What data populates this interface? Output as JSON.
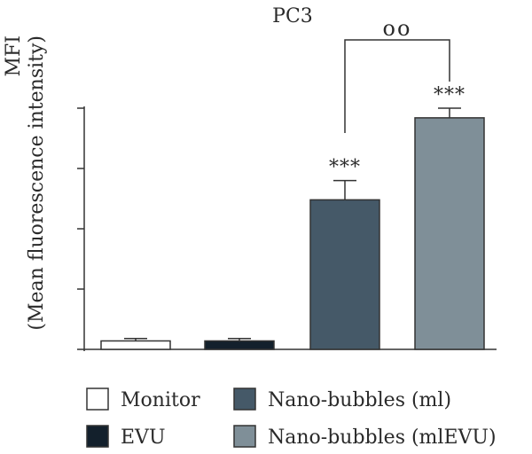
{
  "chart_data": {
    "type": "bar",
    "title": "PC3",
    "ylabel_line1": "MFI",
    "ylabel_line2": "(Mean fluorescence intensity)",
    "xlabel": "",
    "categories": [
      "Monitor",
      "EVU",
      "Nano-bubbles (ml)",
      "Nano-bubbles (mlEVU)"
    ],
    "values": [
      3.5,
      3.5,
      62,
      96
    ],
    "errors": [
      1.0,
      1.0,
      8,
      4
    ],
    "ylim": [
      0,
      100
    ],
    "y_tick_values": [
      0,
      25,
      50,
      75,
      100
    ],
    "y_tick_labels_shown": false,
    "significance_above_bar": [
      "",
      "",
      "***",
      "***"
    ],
    "comparison": {
      "from_index": 2,
      "to_index": 3,
      "label": "oo"
    },
    "legend": {
      "placement": "bottom",
      "entries": [
        {
          "label": "Monitor",
          "color": "#ffffff"
        },
        {
          "label": "EVU",
          "color": "#13202c"
        },
        {
          "label": "Nano-bubbles (ml)",
          "color": "#455968"
        },
        {
          "label": "Nano-bubbles (mlEVU)",
          "color": "#7f8f98"
        }
      ]
    },
    "colors": [
      "#ffffff",
      "#13202c",
      "#455968",
      "#7f8f98"
    ],
    "grid": false
  }
}
